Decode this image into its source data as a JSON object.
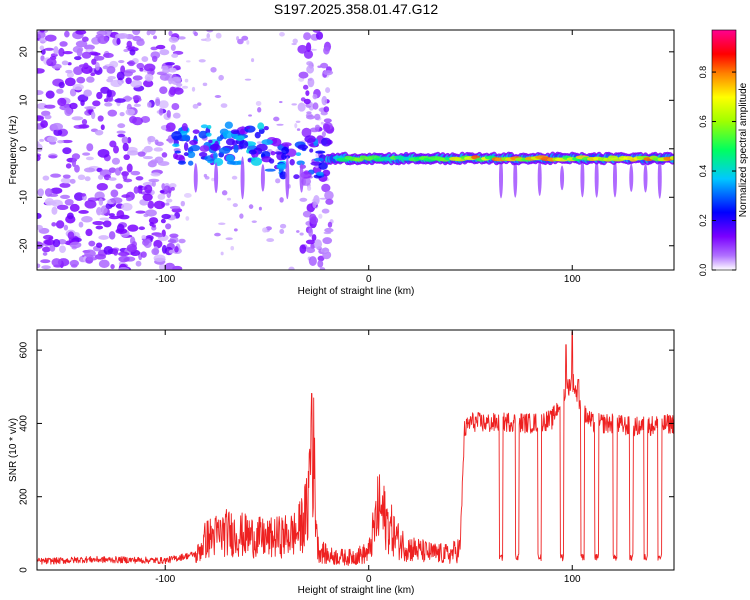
{
  "title": "S197.2025.358.01.47.G12",
  "colorbar": {
    "label": "Normalized spectral amplitude",
    "ticks": [
      "0.0",
      "0.2",
      "0.4",
      "0.6",
      "0.8"
    ],
    "tick_values": [
      0.0,
      0.2,
      0.4,
      0.6,
      0.8
    ],
    "range": [
      0,
      0.97
    ],
    "colors": [
      "#ffffff",
      "#7a00ff",
      "#0000ff",
      "#00ffff",
      "#00ff00",
      "#ffff00",
      "#ff8000",
      "#ff0000",
      "#ff00c0"
    ]
  },
  "chart_data": [
    {
      "type": "heatmap",
      "title": "S197.2025.358.01.47.G12",
      "xlabel": "Height of straight line (km)",
      "ylabel": "Frequency (Hz)",
      "xlim": [
        -163,
        150
      ],
      "ylim": [
        -25,
        24.5
      ],
      "x_ticks": [
        -100,
        0,
        100
      ],
      "x_tick_labels": [
        "-100",
        "0",
        "100"
      ],
      "y_ticks": [
        -20,
        -10,
        0,
        10,
        20
      ],
      "y_tick_labels": [
        "-20",
        "-10",
        "0",
        "10",
        "20"
      ],
      "description_regions": [
        {
          "x": [
            -163,
            -93
          ],
          "kind": "broadband noise",
          "amplitude": 0.15
        },
        {
          "x": [
            -93,
            -20
          ],
          "kind": "scattered blobs near 0 Hz",
          "amplitude": 0.35
        },
        {
          "x": [
            -20,
            150
          ],
          "kind": "narrow carrier near -2 Hz",
          "amplitude": 0.8
        }
      ]
    },
    {
      "type": "line",
      "xlabel": "Height of straight line (km)",
      "ylabel": "SNR (10 * v/v)",
      "xlim": [
        -163,
        150
      ],
      "ylim": [
        0,
        655
      ],
      "x_ticks": [
        -100,
        0,
        100
      ],
      "x_tick_labels": [
        "-100",
        "0",
        "100"
      ],
      "y_ticks": [
        0,
        200,
        400,
        600
      ],
      "y_tick_labels": [
        "0",
        "200",
        "400",
        "600"
      ],
      "color": "#ee2020",
      "series": [
        {
          "name": "SNR",
          "x": [
            -163,
            -150,
            -140,
            -120,
            -100,
            -85,
            -80,
            -70,
            -60,
            -50,
            -40,
            -35,
            -30,
            -28,
            -25,
            -20,
            -10,
            0,
            5,
            10,
            15,
            20,
            30,
            40,
            45,
            47,
            50,
            60,
            70,
            80,
            90,
            95,
            100,
            105,
            110,
            120,
            130,
            140,
            150
          ],
          "values": [
            20,
            22,
            25,
            24,
            22,
            40,
            100,
            120,
            110,
            100,
            110,
            120,
            190,
            480,
            70,
            45,
            40,
            55,
            200,
            140,
            90,
            70,
            55,
            50,
            70,
            380,
            405,
            400,
            405,
            400,
            410,
            470,
            520,
            430,
            400,
            400,
            390,
            395,
            400
          ]
        }
      ],
      "spikes": [
        {
          "x": -28,
          "y": 482
        },
        {
          "x": 97,
          "y": 615
        },
        {
          "x": 100,
          "y": 650
        },
        {
          "x": 103,
          "y": 520
        }
      ],
      "dropouts": [
        65,
        73,
        84,
        95,
        105,
        112,
        121,
        129,
        136,
        143
      ]
    }
  ]
}
